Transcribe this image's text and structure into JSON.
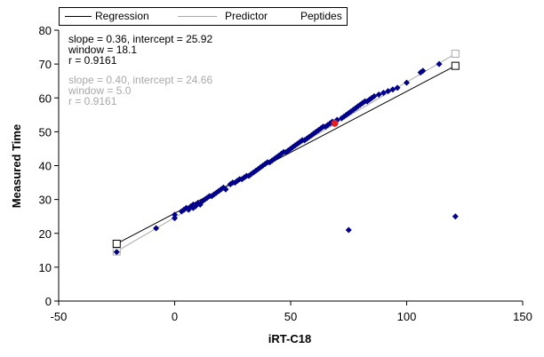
{
  "chart_data": {
    "type": "scatter",
    "xlabel": "iRT-C18",
    "ylabel": "Measured Time",
    "xlim": [
      -50,
      150
    ],
    "ylim": [
      0,
      80
    ],
    "xticks": [
      "-50",
      "0",
      "50",
      "100",
      "150"
    ],
    "yticks": [
      "0",
      "10",
      "20",
      "30",
      "40",
      "50",
      "60",
      "70",
      "80"
    ],
    "grid": false,
    "legend_position": "top",
    "legend": [
      {
        "label": "Regression",
        "style": "line",
        "color": "#000000"
      },
      {
        "label": "Predictor",
        "style": "line",
        "color": "#a9a9a9"
      },
      {
        "label": "Peptides",
        "style": "diamond",
        "color": "#00008b"
      }
    ],
    "regression": {
      "slope": 0.36,
      "intercept": 25.92,
      "x_range": [
        -25,
        121
      ],
      "color": "#000000",
      "stats": [
        "slope = 0.36, intercept = 25.92",
        "window = 18.1",
        "r = 0.9161"
      ]
    },
    "predictor": {
      "slope": 0.4,
      "intercept": 24.66,
      "x_range": [
        -25,
        121
      ],
      "color": "#a9a9a9",
      "stats": [
        "slope = 0.40, intercept = 24.66",
        "window = 5.0",
        "r = 0.9161"
      ]
    },
    "highlight_point": {
      "x": 69,
      "y": 52.5,
      "color": "#e02020"
    },
    "peptides": {
      "color": "#00008b",
      "points": [
        [
          -25,
          14.5
        ],
        [
          -8,
          21.5
        ],
        [
          0,
          24.5
        ],
        [
          0,
          25.5
        ],
        [
          3,
          26.5
        ],
        [
          4,
          27
        ],
        [
          5,
          27.5
        ],
        [
          6,
          27
        ],
        [
          7,
          28
        ],
        [
          8,
          27.5
        ],
        [
          8,
          28.5
        ],
        [
          9,
          28
        ],
        [
          10,
          29
        ],
        [
          11,
          28.5
        ],
        [
          12,
          29.5
        ],
        [
          13,
          30
        ],
        [
          14,
          30.5
        ],
        [
          15,
          31
        ],
        [
          16,
          31
        ],
        [
          17,
          31.5
        ],
        [
          18,
          32
        ],
        [
          19,
          32.5
        ],
        [
          20,
          33
        ],
        [
          21,
          33.5
        ],
        [
          22,
          33
        ],
        [
          24,
          34.5
        ],
        [
          25,
          35
        ],
        [
          26,
          35
        ],
        [
          27,
          35.5
        ],
        [
          28,
          36
        ],
        [
          29,
          36
        ],
        [
          30,
          36.5
        ],
        [
          31,
          37
        ],
        [
          32,
          37
        ],
        [
          33,
          37.5
        ],
        [
          34,
          38
        ],
        [
          35,
          38.5
        ],
        [
          36,
          39
        ],
        [
          37,
          39.5
        ],
        [
          38,
          40
        ],
        [
          39,
          40.5
        ],
        [
          40,
          41
        ],
        [
          41,
          41
        ],
        [
          42,
          41.5
        ],
        [
          43,
          42
        ],
        [
          44,
          42.5
        ],
        [
          45,
          43
        ],
        [
          46,
          43.5
        ],
        [
          47,
          44
        ],
        [
          48,
          44
        ],
        [
          49,
          44.5
        ],
        [
          50,
          45
        ],
        [
          51,
          45.5
        ],
        [
          52,
          46
        ],
        [
          53,
          46.5
        ],
        [
          54,
          47
        ],
        [
          55,
          47.5
        ],
        [
          56,
          47.5
        ],
        [
          57,
          48
        ],
        [
          58,
          48.5
        ],
        [
          59,
          49
        ],
        [
          60,
          49.5
        ],
        [
          61,
          50
        ],
        [
          62,
          50.5
        ],
        [
          63,
          51
        ],
        [
          64,
          51.5
        ],
        [
          65,
          51.5
        ],
        [
          66,
          52
        ],
        [
          67,
          52.5
        ],
        [
          68,
          53
        ],
        [
          70,
          53.5
        ],
        [
          72,
          54
        ],
        [
          73,
          54.5
        ],
        [
          74,
          55
        ],
        [
          75,
          55.5
        ],
        [
          76,
          56
        ],
        [
          77,
          56.5
        ],
        [
          78,
          57
        ],
        [
          79,
          57.5
        ],
        [
          80,
          58
        ],
        [
          81,
          58.5
        ],
        [
          82,
          59
        ],
        [
          83,
          59
        ],
        [
          84,
          59.5
        ],
        [
          85,
          60
        ],
        [
          86,
          60.5
        ],
        [
          88,
          61
        ],
        [
          90,
          61.5
        ],
        [
          92,
          62
        ],
        [
          94,
          62.5
        ],
        [
          96,
          63
        ],
        [
          100,
          64.5
        ],
        [
          106,
          67.5
        ],
        [
          107,
          68
        ],
        [
          114,
          70
        ],
        [
          121,
          25
        ],
        [
          75,
          21
        ]
      ]
    }
  }
}
